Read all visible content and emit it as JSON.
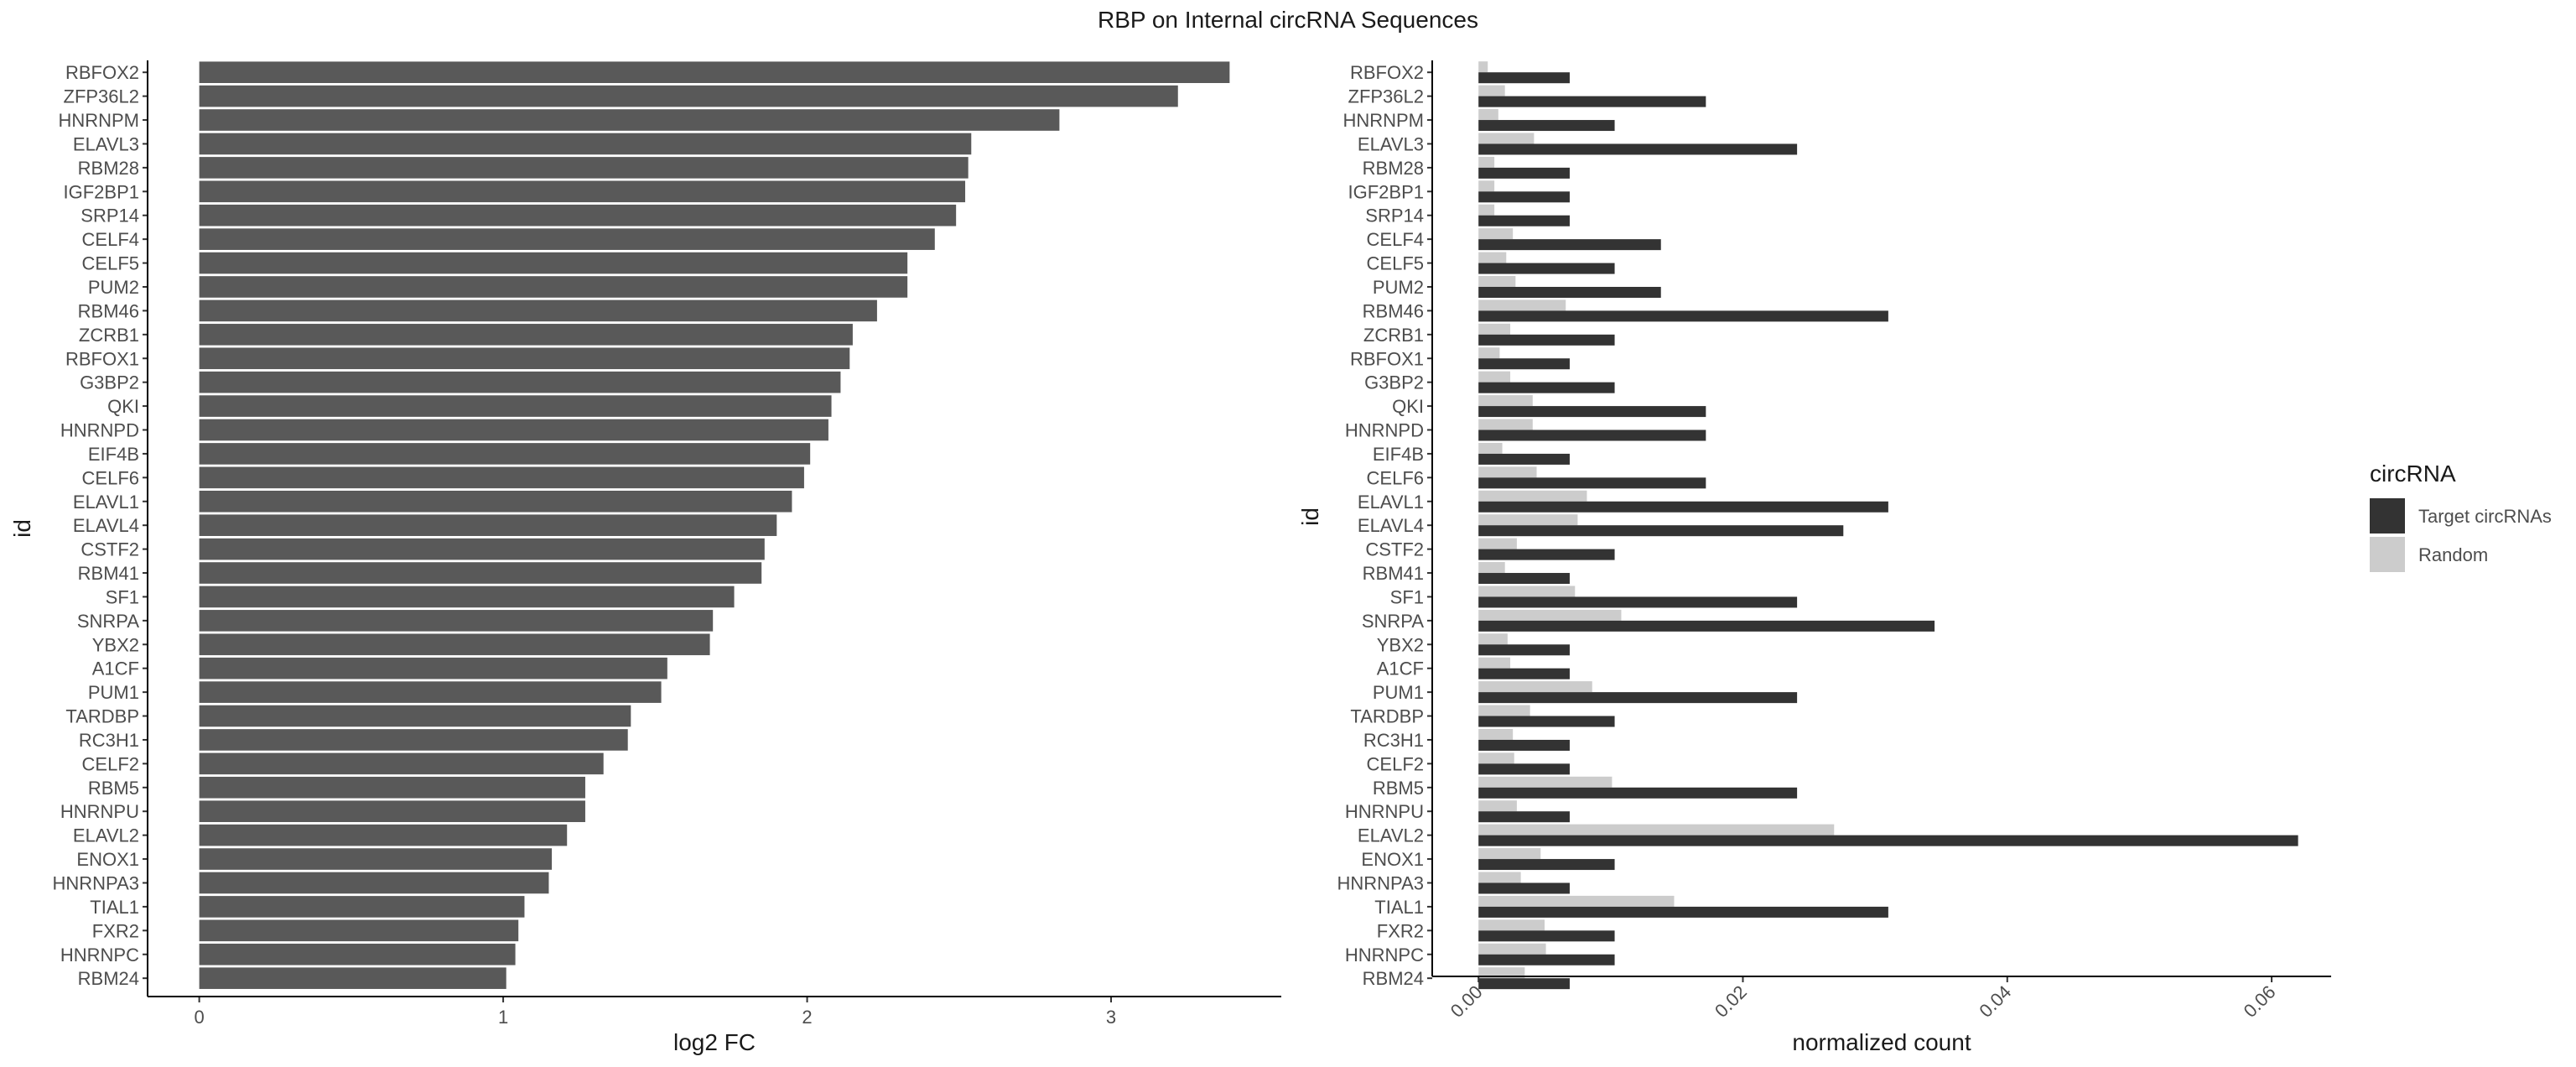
{
  "title": "RBP on Internal circRNA Sequences",
  "chart_data": [
    {
      "type": "bar",
      "orientation": "horizontal",
      "xlabel": "log2 FC",
      "ylabel": "id",
      "xlim": [
        -0.17,
        3.56
      ],
      "xticks": [
        0,
        1,
        2,
        3
      ],
      "bar_color": "#595959",
      "grid": false,
      "categories": [
        "RBFOX2",
        "ZFP36L2",
        "HNRNPM",
        "ELAVL3",
        "RBM28",
        "IGF2BP1",
        "SRP14",
        "CELF4",
        "CELF5",
        "PUM2",
        "RBM46",
        "ZCRB1",
        "RBFOX1",
        "G3BP2",
        "QKI",
        "HNRNPD",
        "EIF4B",
        "CELF6",
        "ELAVL1",
        "ELAVL4",
        "CSTF2",
        "RBM41",
        "SF1",
        "SNRPA",
        "YBX2",
        "A1CF",
        "PUM1",
        "TARDBP",
        "RC3H1",
        "CELF2",
        "RBM5",
        "HNRNPU",
        "ELAVL2",
        "ENOX1",
        "HNRNPA3",
        "TIAL1",
        "FXR2",
        "HNRNPC",
        "RBM24"
      ],
      "values": [
        3.39,
        3.22,
        2.83,
        2.54,
        2.53,
        2.52,
        2.49,
        2.42,
        2.33,
        2.33,
        2.23,
        2.15,
        2.14,
        2.11,
        2.08,
        2.07,
        2.01,
        1.99,
        1.95,
        1.9,
        1.86,
        1.85,
        1.76,
        1.69,
        1.68,
        1.54,
        1.52,
        1.42,
        1.41,
        1.33,
        1.27,
        1.27,
        1.21,
        1.16,
        1.15,
        1.07,
        1.05,
        1.04,
        1.01
      ]
    },
    {
      "type": "bar",
      "orientation": "horizontal",
      "grouped": true,
      "xlabel": "normalized count",
      "ylabel": "id",
      "xlim": [
        -0.0035,
        0.0645
      ],
      "xticks": [
        0.0,
        0.02,
        0.04,
        0.06
      ],
      "xtick_labels": [
        "0.00",
        "0.02",
        "0.04",
        "0.06"
      ],
      "grid": false,
      "legend": {
        "title": "circRNA",
        "position": "right"
      },
      "categories": [
        "RBFOX2",
        "ZFP36L2",
        "HNRNPM",
        "ELAVL3",
        "RBM28",
        "IGF2BP1",
        "SRP14",
        "CELF4",
        "CELF5",
        "PUM2",
        "RBM46",
        "ZCRB1",
        "RBFOX1",
        "G3BP2",
        "QKI",
        "HNRNPD",
        "EIF4B",
        "CELF6",
        "ELAVL1",
        "ELAVL4",
        "CSTF2",
        "RBM41",
        "SF1",
        "SNRPA",
        "YBX2",
        "A1CF",
        "PUM1",
        "TARDBP",
        "RC3H1",
        "CELF2",
        "RBM5",
        "HNRNPU",
        "ELAVL2",
        "ENOX1",
        "HNRNPA3",
        "TIAL1",
        "FXR2",
        "HNRNPC",
        "RBM24"
      ],
      "series": [
        {
          "name": "Target circRNAs",
          "color": "#333333",
          "values": [
            0.0069,
            0.0172,
            0.0103,
            0.0241,
            0.0069,
            0.0069,
            0.0069,
            0.0138,
            0.0103,
            0.0138,
            0.031,
            0.0103,
            0.0069,
            0.0103,
            0.0172,
            0.0172,
            0.0069,
            0.0172,
            0.031,
            0.0276,
            0.0103,
            0.0069,
            0.0241,
            0.0345,
            0.0069,
            0.0069,
            0.0241,
            0.0103,
            0.0069,
            0.0069,
            0.0241,
            0.0069,
            0.062,
            0.0103,
            0.0069,
            0.031,
            0.0103,
            0.0103,
            0.0069
          ]
        },
        {
          "name": "Random",
          "color": "#cccccc",
          "values": [
            0.0007,
            0.002,
            0.0015,
            0.0042,
            0.0012,
            0.0012,
            0.0012,
            0.0026,
            0.0021,
            0.0028,
            0.0066,
            0.0024,
            0.0016,
            0.0024,
            0.0041,
            0.0041,
            0.0018,
            0.0044,
            0.0082,
            0.0075,
            0.0029,
            0.002,
            0.0073,
            0.0108,
            0.0022,
            0.0024,
            0.0086,
            0.0039,
            0.0026,
            0.0027,
            0.0101,
            0.0029,
            0.0269,
            0.0047,
            0.0032,
            0.0148,
            0.005,
            0.0051,
            0.0035
          ]
        }
      ]
    }
  ]
}
